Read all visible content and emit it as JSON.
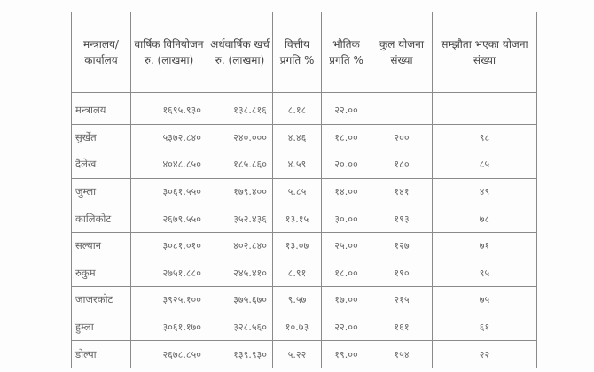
{
  "table": {
    "headers": [
      "मन्त्रालय/ कार्यालय",
      "वार्षिक विनियोजन रु. (लाखमा)",
      "अर्धवार्षिक खर्च रु. (लाखमा)",
      "वित्तीय प्रगति %",
      "भौतिक प्रगति %",
      "कुल योजना संख्या",
      "सम्झौता भएका योजना संख्या"
    ],
    "rows": [
      [
        "मन्त्रालय",
        "१६९५.९३०",
        "१३८.८१६",
        "८.१८",
        "२२.००",
        "",
        ""
      ],
      [
        "सुर्खेत",
        "५३७२.८४०",
        "२४०.०००",
        "४.४६",
        "१८.००",
        "२००",
        "९८"
      ],
      [
        "दैलेख",
        "४०४८.८५०",
        "१८५.८६०",
        "४.५९",
        "२०.००",
        "१८०",
        "८५"
      ],
      [
        "जुम्ला",
        "३०६१.५५०",
        "१७९.४००",
        "५.८५",
        "१४.००",
        "१४१",
        "४९"
      ],
      [
        "कालिकोट",
        "२६७९.५५०",
        "३५२.४३६",
        "१३.१५",
        "३०.००",
        "१९३",
        "७८"
      ],
      [
        "सल्यान",
        "३०८१.०१०",
        "४०२.८४०",
        "१३.०७",
        "२५.००",
        "१२७",
        "७१"
      ],
      [
        "रुकुम",
        "२७५१.८८०",
        "२४५.४१०",
        "८.९१",
        "१८.००",
        "१९०",
        "९५"
      ],
      [
        "जाजरकोट",
        "३९२५.१००",
        "३७५.६७०",
        "९.५७",
        "१७.००",
        "२१५",
        "७५"
      ],
      [
        "हुम्ला",
        "३०६१.१७०",
        "३२८.५६०",
        "१०.७३",
        "२२.००",
        "१६१",
        "६१"
      ],
      [
        "डोल्पा",
        "२६७८.८५०",
        "१३९.९३०",
        "५.२२",
        "१९.००",
        "१५४",
        "२२"
      ]
    ]
  }
}
